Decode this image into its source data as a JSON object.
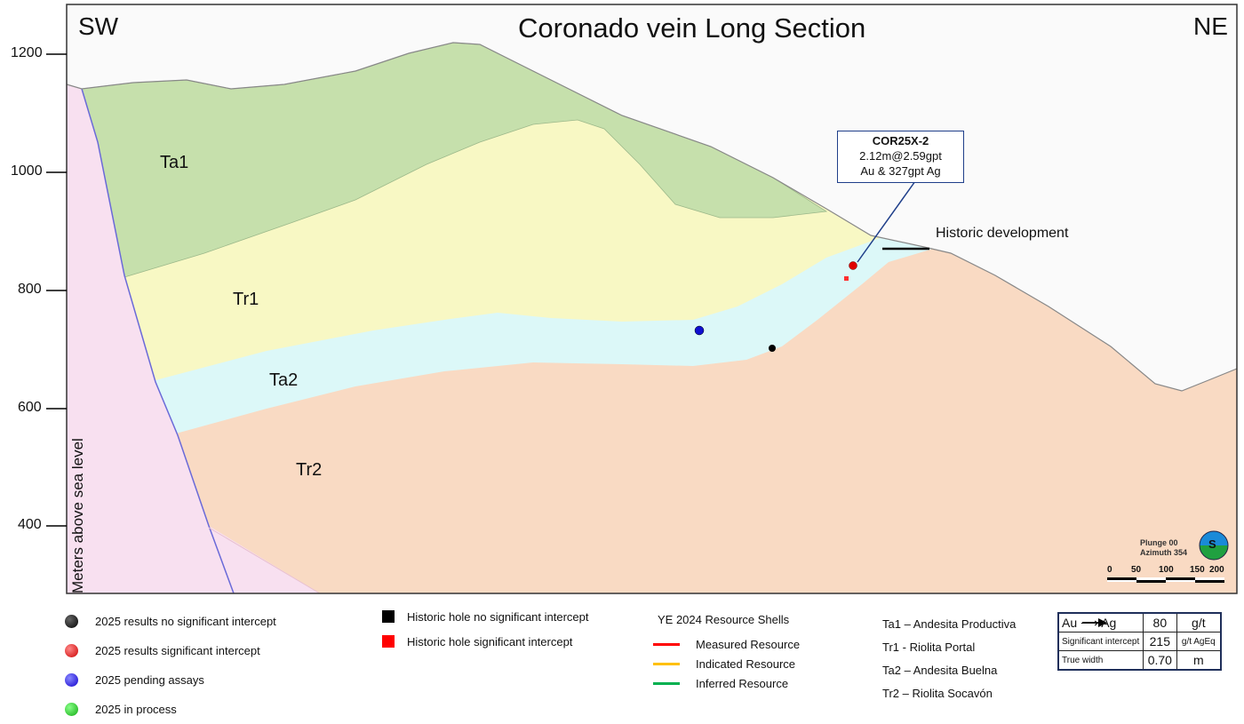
{
  "title": "Coronado vein Long Section",
  "left_dir": "SW",
  "right_dir": "NE",
  "y_axis": {
    "label": "Meters above sea level",
    "ticks": [
      "1200",
      "1000",
      "800",
      "600",
      "400"
    ]
  },
  "units": {
    "Ta1": "Ta1",
    "Tr1": "Tr1",
    "Ta2": "Ta2",
    "Tr2": "Tr2"
  },
  "callout": {
    "hole": "COR25X-2",
    "line1": "2.12m@2.59gpt",
    "line2": "Au & 327gpt Ag"
  },
  "historic_dev": "Historic development",
  "orientation": {
    "plunge": "Plunge 00",
    "azimuth": "Azimuth 354",
    "compass": "S"
  },
  "scale": [
    "0",
    "50",
    "100",
    "150",
    "200"
  ],
  "legend_holes": [
    {
      "label": "2025 results no significant intercept",
      "color": "#000000"
    },
    {
      "label": "2025 results significant intercept",
      "color": "#e00000"
    },
    {
      "label": "2025 pending assays",
      "color": "#1010d0"
    },
    {
      "label": "2025 in process",
      "color": "#20c020"
    }
  ],
  "legend_historic": [
    {
      "label": "Historic hole no significant intercept",
      "color": "#000000"
    },
    {
      "label": "Historic hole significant intercept",
      "color": "#ff0000"
    }
  ],
  "resource": {
    "title": "YE 2024 Resource Shells",
    "items": [
      {
        "label": "Measured Resource",
        "color": "#ff0000"
      },
      {
        "label": "Indicated Resource",
        "color": "#ffc000"
      },
      {
        "label": "Inferred Resource",
        "color": "#00b050"
      }
    ]
  },
  "lithology": [
    "Ta1 – Andesita Productiva",
    "Tr1 -  Riolita Portal",
    "Ta2 – Andesita Buelna",
    "Tr2 – Riolita Socavón"
  ],
  "info_table": {
    "rows": [
      {
        "label": "Au ⟶ Ag",
        "value": "80",
        "unit": "g/t"
      },
      {
        "label": "Significant intercept",
        "value": "215",
        "unit": "g/t AgEq"
      },
      {
        "label": "True width",
        "value": "0.70",
        "unit": "m"
      }
    ]
  }
}
